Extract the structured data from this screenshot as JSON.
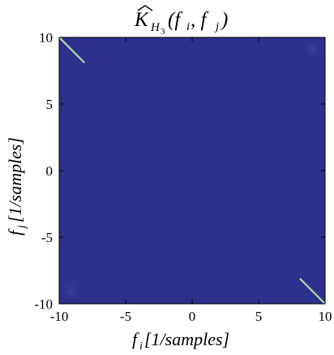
{
  "chart_data": {
    "type": "heatmap",
    "title": {
      "base": "K",
      "sub": "H",
      "subsub": "3",
      "args": "(f",
      "i": "i",
      "mid": ", f",
      "j": "j",
      "close": ")"
    },
    "xlabel": {
      "var": "f",
      "sub": "i",
      "unit": "[1/samples]"
    },
    "ylabel": {
      "var": "f",
      "sub": "j",
      "unit": "[1/samples]"
    },
    "xlim": [
      -10,
      10
    ],
    "ylim": [
      -10,
      10
    ],
    "xticks": [
      -10,
      -5,
      0,
      5,
      10
    ],
    "yticks": [
      -10,
      -5,
      0,
      5,
      10
    ],
    "xtick_labels": [
      "-10",
      "-5",
      "0",
      "5",
      "10"
    ],
    "ytick_labels": [
      "-10",
      "-5",
      "0",
      "5",
      "10"
    ],
    "background_color": "#2f2f8e",
    "line_color": "#e8f08a",
    "line_glow_color": "#49b8c8",
    "features": [
      {
        "kind": "diagonal-line",
        "from": [
          -10,
          10
        ],
        "to": [
          -8.1,
          8.1
        ]
      },
      {
        "kind": "diagonal-line",
        "from": [
          8.1,
          -8.1
        ],
        "to": [
          10,
          -10
        ]
      },
      {
        "kind": "faint-patch",
        "x": [
          8.2,
          10
        ],
        "y": [
          8.2,
          10
        ]
      },
      {
        "kind": "faint-patch",
        "x": [
          -10,
          -8.2
        ],
        "y": [
          -10,
          -8.2
        ]
      }
    ]
  }
}
